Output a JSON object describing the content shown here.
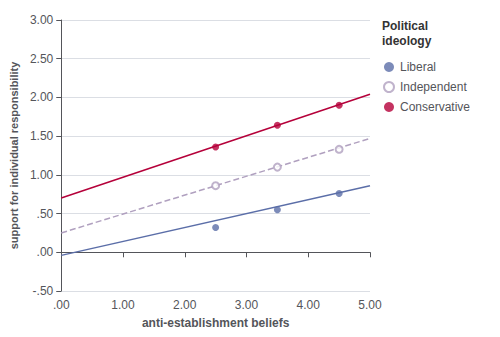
{
  "chart_data": {
    "type": "scatter",
    "xlabel": "anti-establishment beliefs",
    "ylabel": "support for individual responsibility",
    "legend_title": "Political\nideology",
    "xlim": [
      0.0,
      5.0
    ],
    "ylim": [
      -0.5,
      3.0
    ],
    "xticks": [
      {
        "value": 0.0,
        "label": ".00"
      },
      {
        "value": 1.0,
        "label": "1.00"
      },
      {
        "value": 2.0,
        "label": "2.00"
      },
      {
        "value": 3.0,
        "label": "3.00"
      },
      {
        "value": 4.0,
        "label": "4.00"
      },
      {
        "value": 5.0,
        "label": "5.00"
      }
    ],
    "yticks": [
      {
        "value": -0.5,
        "label": "-.50"
      },
      {
        "value": 0.0,
        "label": ".00"
      },
      {
        "value": 0.5,
        "label": ".50"
      },
      {
        "value": 1.0,
        "label": "1.00"
      },
      {
        "value": 1.5,
        "label": "1.50"
      },
      {
        "value": 2.0,
        "label": "2.00"
      },
      {
        "value": 2.5,
        "label": "2.50"
      },
      {
        "value": 3.0,
        "label": "3.00"
      }
    ],
    "grid": true,
    "legend": "right",
    "series": [
      {
        "name": "Liberal",
        "color": "#5b6ea8",
        "marker": "circle",
        "line_style": "solid",
        "x": [
          2.5,
          3.5,
          4.5
        ],
        "values": [
          0.32,
          0.55,
          0.76
        ],
        "fit_x": [
          0.0,
          5.0
        ],
        "fit_values": [
          -0.04,
          0.86
        ]
      },
      {
        "name": "Independent",
        "color": "#b0a0bf",
        "marker": "circle-open",
        "line_style": "dashed",
        "x": [
          2.5,
          3.5,
          4.5
        ],
        "values": [
          0.86,
          1.1,
          1.33
        ],
        "fit_x": [
          0.0,
          5.0
        ],
        "fit_values": [
          0.25,
          1.47
        ]
      },
      {
        "name": "Conservative",
        "color": "#b5003a",
        "marker": "circle",
        "line_style": "solid",
        "x": [
          2.5,
          3.5,
          4.5
        ],
        "values": [
          1.36,
          1.64,
          1.9
        ],
        "fit_x": [
          0.0,
          5.0
        ],
        "fit_values": [
          0.7,
          2.04
        ]
      }
    ]
  }
}
